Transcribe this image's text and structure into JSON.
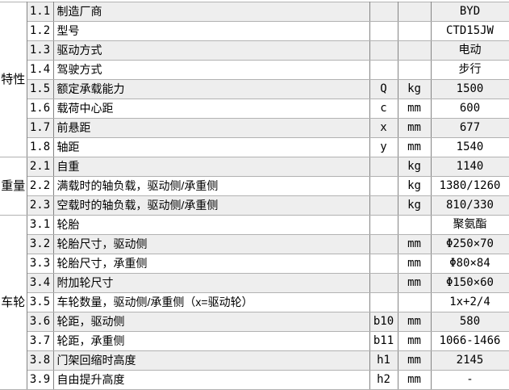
{
  "page": {
    "background": "#ffffff"
  },
  "table": {
    "colors": {
      "stripe_row": "#eeeeee",
      "white_row": "#ffffff",
      "h_border": "#b2b2b2",
      "v_border": "#848484",
      "text": "#000000"
    },
    "groups": [
      {
        "label": "特性",
        "row_count": 8
      },
      {
        "label": "重量",
        "row_count": 3
      },
      {
        "label": "车轮",
        "row_count": 9
      }
    ],
    "rows": [
      {
        "num": "1.1",
        "desc": "制造厂商",
        "sym": "",
        "unit": "",
        "val": "BYD"
      },
      {
        "num": "1.2",
        "desc": "型号",
        "sym": "",
        "unit": "",
        "val": "CTD15JW"
      },
      {
        "num": "1.3",
        "desc": "驱动方式",
        "sym": "",
        "unit": "",
        "val": "电动"
      },
      {
        "num": "1.4",
        "desc": "驾驶方式",
        "sym": "",
        "unit": "",
        "val": "步行"
      },
      {
        "num": "1.5",
        "desc": "额定承载能力",
        "sym": "Q",
        "unit": "kg",
        "val": "1500"
      },
      {
        "num": "1.6",
        "desc": "载荷中心距",
        "sym": "c",
        "unit": "mm",
        "val": "600"
      },
      {
        "num": "1.7",
        "desc": "前悬距",
        "sym": "x",
        "unit": "mm",
        "val": "677"
      },
      {
        "num": "1.8",
        "desc": "轴距",
        "sym": "y",
        "unit": "mm",
        "val": "1540"
      },
      {
        "num": "2.1",
        "desc": "自重",
        "sym": "",
        "unit": "kg",
        "val": "1140"
      },
      {
        "num": "2.2",
        "desc": "满载时的轴负载，驱动侧/承重侧",
        "sym": "",
        "unit": "kg",
        "val": "1380/1260"
      },
      {
        "num": "2.3",
        "desc": "空载时的轴负载，驱动侧/承重侧",
        "sym": "",
        "unit": "kg",
        "val": "810/330"
      },
      {
        "num": "3.1",
        "desc": "轮胎",
        "sym": "",
        "unit": "",
        "val": "聚氨酯"
      },
      {
        "num": "3.2",
        "desc": "轮胎尺寸，驱动侧",
        "sym": "",
        "unit": "mm",
        "val": "Φ250×70"
      },
      {
        "num": "3.3",
        "desc": "轮胎尺寸，承重侧",
        "sym": "",
        "unit": "mm",
        "val": "Φ80×84"
      },
      {
        "num": "3.4",
        "desc": "附加轮尺寸",
        "sym": "",
        "unit": "mm",
        "val": "Φ150×60"
      },
      {
        "num": "3.5",
        "desc": "车轮数量，驱动侧/承重侧（x=驱动轮）",
        "sym": "",
        "unit": "",
        "val": "1x+2/4"
      },
      {
        "num": "3.6",
        "desc": "轮距，驱动侧",
        "sym": "b10",
        "unit": "mm",
        "val": "580"
      },
      {
        "num": "3.7",
        "desc": "轮距，承重侧",
        "sym": "b11",
        "unit": "mm",
        "val": "1066-1466"
      },
      {
        "num": "3.8",
        "desc": "门架回缩时高度",
        "sym": "h1",
        "unit": "mm",
        "val": "2145"
      },
      {
        "num": "3.9",
        "desc": "自由提升高度",
        "sym": "h2",
        "unit": "mm",
        "val": "-"
      }
    ]
  }
}
